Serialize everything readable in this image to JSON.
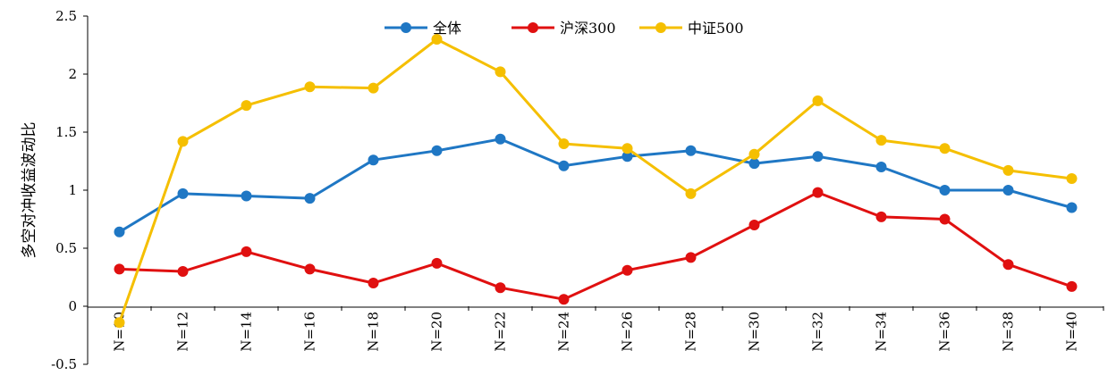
{
  "chart_data": {
    "type": "line",
    "title": "",
    "ylabel": "多空对冲收益波动比",
    "xlabel": "",
    "ylim": [
      -0.5,
      2.5
    ],
    "yticks": [
      -0.5,
      0,
      0.5,
      1,
      1.5,
      2,
      2.5
    ],
    "ytick_labels": [
      "-0.5",
      "0",
      "0.5",
      "1",
      "1.5",
      "2",
      "2.5"
    ],
    "categories": [
      "N=10",
      "N=12",
      "N=14",
      "N=16",
      "N=18",
      "N=20",
      "N=22",
      "N=24",
      "N=26",
      "N=28",
      "N=30",
      "N=32",
      "N=34",
      "N=36",
      "N=38",
      "N=40"
    ],
    "legend_position": "top-center",
    "grid": false,
    "series": [
      {
        "name": "全体",
        "color": "#1f77c4",
        "values": [
          0.64,
          0.97,
          0.95,
          0.93,
          1.26,
          1.34,
          1.44,
          1.21,
          1.29,
          1.34,
          1.23,
          1.29,
          1.2,
          1.0,
          1.0,
          0.85
        ]
      },
      {
        "name": "沪深300",
        "color": "#e01010",
        "values": [
          0.32,
          0.3,
          0.47,
          0.32,
          0.2,
          0.37,
          0.16,
          0.06,
          0.31,
          0.42,
          0.7,
          0.98,
          0.77,
          0.75,
          0.36,
          0.17
        ]
      },
      {
        "name": "中证500",
        "color": "#f5bf00",
        "values": [
          -0.14,
          1.42,
          1.73,
          1.89,
          1.88,
          2.3,
          2.02,
          1.4,
          1.36,
          0.97,
          1.31,
          1.77,
          1.43,
          1.36,
          1.17,
          1.1
        ]
      }
    ]
  }
}
